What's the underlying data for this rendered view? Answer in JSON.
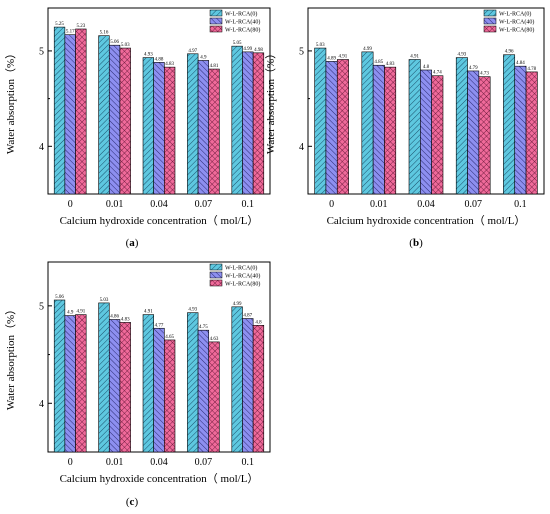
{
  "chart_data": [
    {
      "type": "bar",
      "caption": "a",
      "categories": [
        "0",
        "0.01",
        "0.04",
        "0.07",
        "0.1"
      ],
      "xlabel": "Calcium hydroxide concentration（ mol/L）",
      "ylabel": "Water absorption（%）",
      "ylim": [
        3.5,
        5.45
      ],
      "yticks": [
        "4",
        "5"
      ],
      "series": [
        {
          "name": "W-L-RCA(0)",
          "values": [
            5.25,
            5.16,
            4.93,
            4.97,
            5.05
          ],
          "labels": [
            "5.25",
            "5.16",
            "4.93",
            "4.97",
            "5.05"
          ]
        },
        {
          "name": "W-L-RCA(40)",
          "values": [
            5.17,
            5.06,
            4.88,
            4.9,
            4.99
          ],
          "labels": [
            "5.17",
            "5.06",
            "4.88",
            "4.9",
            "4.99"
          ]
        },
        {
          "name": "W-L-RCA(80)",
          "values": [
            5.23,
            5.03,
            4.83,
            4.81,
            4.98
          ],
          "labels": [
            "5.23",
            "5.03",
            "4.83",
            "4.81",
            "4.98"
          ]
        }
      ],
      "legend": "top-right"
    },
    {
      "type": "bar",
      "caption": "b",
      "categories": [
        "0",
        "0.01",
        "0.04",
        "0.07",
        "0.1"
      ],
      "xlabel": "Calcium hydroxide concentration（ mol/L）",
      "ylabel": "Water absorption（%）",
      "ylim": [
        3.5,
        5.45
      ],
      "yticks": [
        "4",
        "5"
      ],
      "series": [
        {
          "name": "W-L-RCA(0)",
          "values": [
            5.03,
            4.99,
            4.91,
            4.93,
            4.96
          ],
          "labels": [
            "5.03",
            "4.99",
            "4.91",
            "4.93",
            "4.96"
          ]
        },
        {
          "name": "W-L-RCA(40)",
          "values": [
            4.89,
            4.85,
            4.8,
            4.79,
            4.84
          ],
          "labels": [
            "4.89",
            "4.85",
            "4.8",
            "4.79",
            "4.84"
          ]
        },
        {
          "name": "W-L-RCA(80)",
          "values": [
            4.91,
            4.83,
            4.74,
            4.73,
            4.78
          ],
          "labels": [
            "4.91",
            "4.83",
            "4.74",
            "4.73",
            "4.78"
          ]
        }
      ],
      "legend": "top-right"
    },
    {
      "type": "bar",
      "caption": "c",
      "categories": [
        "0",
        "0.01",
        "0.04",
        "0.07",
        "0.1"
      ],
      "xlabel": "Calcium hydroxide concentration（ mol/L）",
      "ylabel": "Water absorption（%）",
      "ylim": [
        3.5,
        5.45
      ],
      "yticks": [
        "4",
        "5"
      ],
      "series": [
        {
          "name": "W-L-RCA(0)",
          "values": [
            5.06,
            5.03,
            4.91,
            4.93,
            4.99
          ],
          "labels": [
            "5.06",
            "5.03",
            "4.91",
            "4.93",
            "4.99"
          ]
        },
        {
          "name": "W-L-RCA(40)",
          "values": [
            4.9,
            4.86,
            4.77,
            4.75,
            4.87
          ],
          "labels": [
            "4.9",
            "4.86",
            "4.77",
            "4.75",
            "4.87"
          ]
        },
        {
          "name": "W-L-RCA(80)",
          "values": [
            4.91,
            4.83,
            4.65,
            4.63,
            4.8
          ],
          "labels": [
            "4.91",
            "4.83",
            "4.65",
            "4.63",
            "4.8"
          ]
        }
      ],
      "legend": "top-right"
    }
  ],
  "colors": {
    "series": [
      "#5ec8e0",
      "#8d8ff0",
      "#f06a9a"
    ],
    "axis": "#000000"
  }
}
